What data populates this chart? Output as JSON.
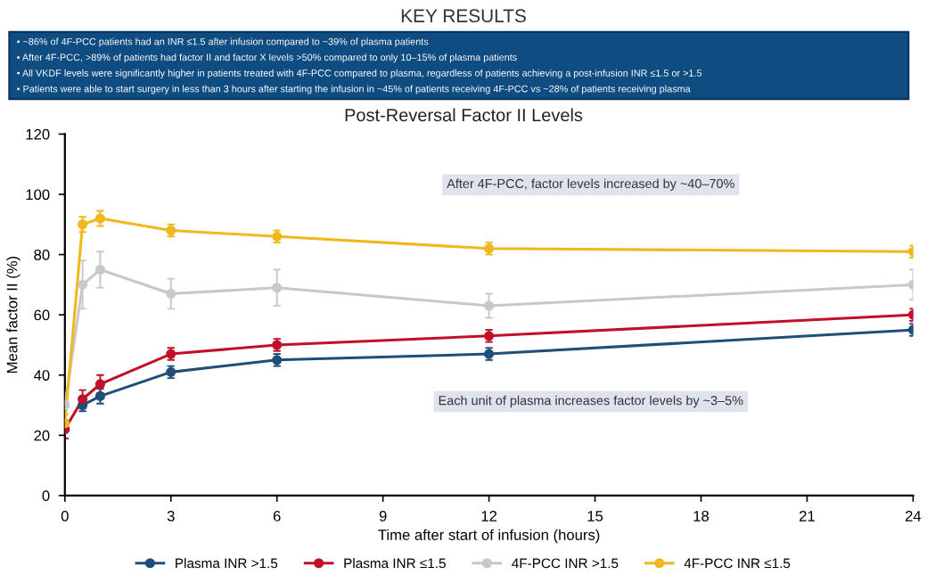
{
  "chart_data": {
    "type": "line",
    "title": "Post-Reversal Factor II Levels",
    "xlabel": "Time after start of infusion (hours)",
    "ylabel": "Mean factor II (%)",
    "annotations": [
      "KEY RESULTS",
      "• ~86% of 4F-PCC patients had an INR ≤1.5 after infusion compared to ~39% of plasma patients",
      "• After 4F-PCC, >89% of patients had factor II and factor X levels >50% compared to only 10–15% of plasma patients",
      "• All VKDF levels were significantly higher in patients treated with 4F-PCC compared to plasma, regardless of patients achieving a post-infusion INR ≤1.5 or >1.5",
      "• Patients were able to start surgery in less than 3 hours after starting the infusion in ~45% of patients receiving 4F-PCC vs ~28% of patients receiving plasma",
      "After 4F-PCC, factor levels increased by ~40–70%",
      "Each unit of plasma increases factor levels by ~3–5%"
    ],
    "x": [
      0,
      0.5,
      1,
      3,
      6,
      12,
      24
    ],
    "series": [
      {
        "name": "Plasma INR >1.5",
        "color": "#1f4e79",
        "values": [
          null,
          30,
          33,
          41,
          45,
          47,
          55
        ],
        "errors": [
          null,
          2,
          2.5,
          2,
          2,
          2,
          2
        ]
      },
      {
        "name": "Plasma INR ≤1.5",
        "color": "#c0102a",
        "values": [
          22,
          32,
          37,
          47,
          50,
          53,
          60
        ],
        "errors": [
          3,
          3,
          3,
          2,
          2,
          2,
          2
        ]
      },
      {
        "name": "4F-PCC INR >1.5",
        "color": "#c8c8c8",
        "values": [
          30,
          70,
          75,
          67,
          69,
          63,
          70
        ],
        "errors": [
          5,
          8,
          6,
          5,
          6,
          4,
          5
        ]
      },
      {
        "name": "4F-PCC INR ≤1.5",
        "color": "#f0b81c",
        "values": [
          24,
          90,
          92,
          88,
          86,
          82,
          81
        ],
        "errors": [
          3,
          2.5,
          2.5,
          2,
          2,
          2,
          2
        ]
      }
    ],
    "xlim": [
      0,
      24
    ],
    "xticks": [
      0,
      3,
      6,
      9,
      12,
      15,
      18,
      21,
      24
    ],
    "ylim": [
      0,
      120
    ],
    "yticks": [
      0,
      20,
      40,
      60,
      80,
      100,
      120
    ],
    "grid": false,
    "legend": "bottom",
    "marker": "circle",
    "line_style": "solid"
  }
}
